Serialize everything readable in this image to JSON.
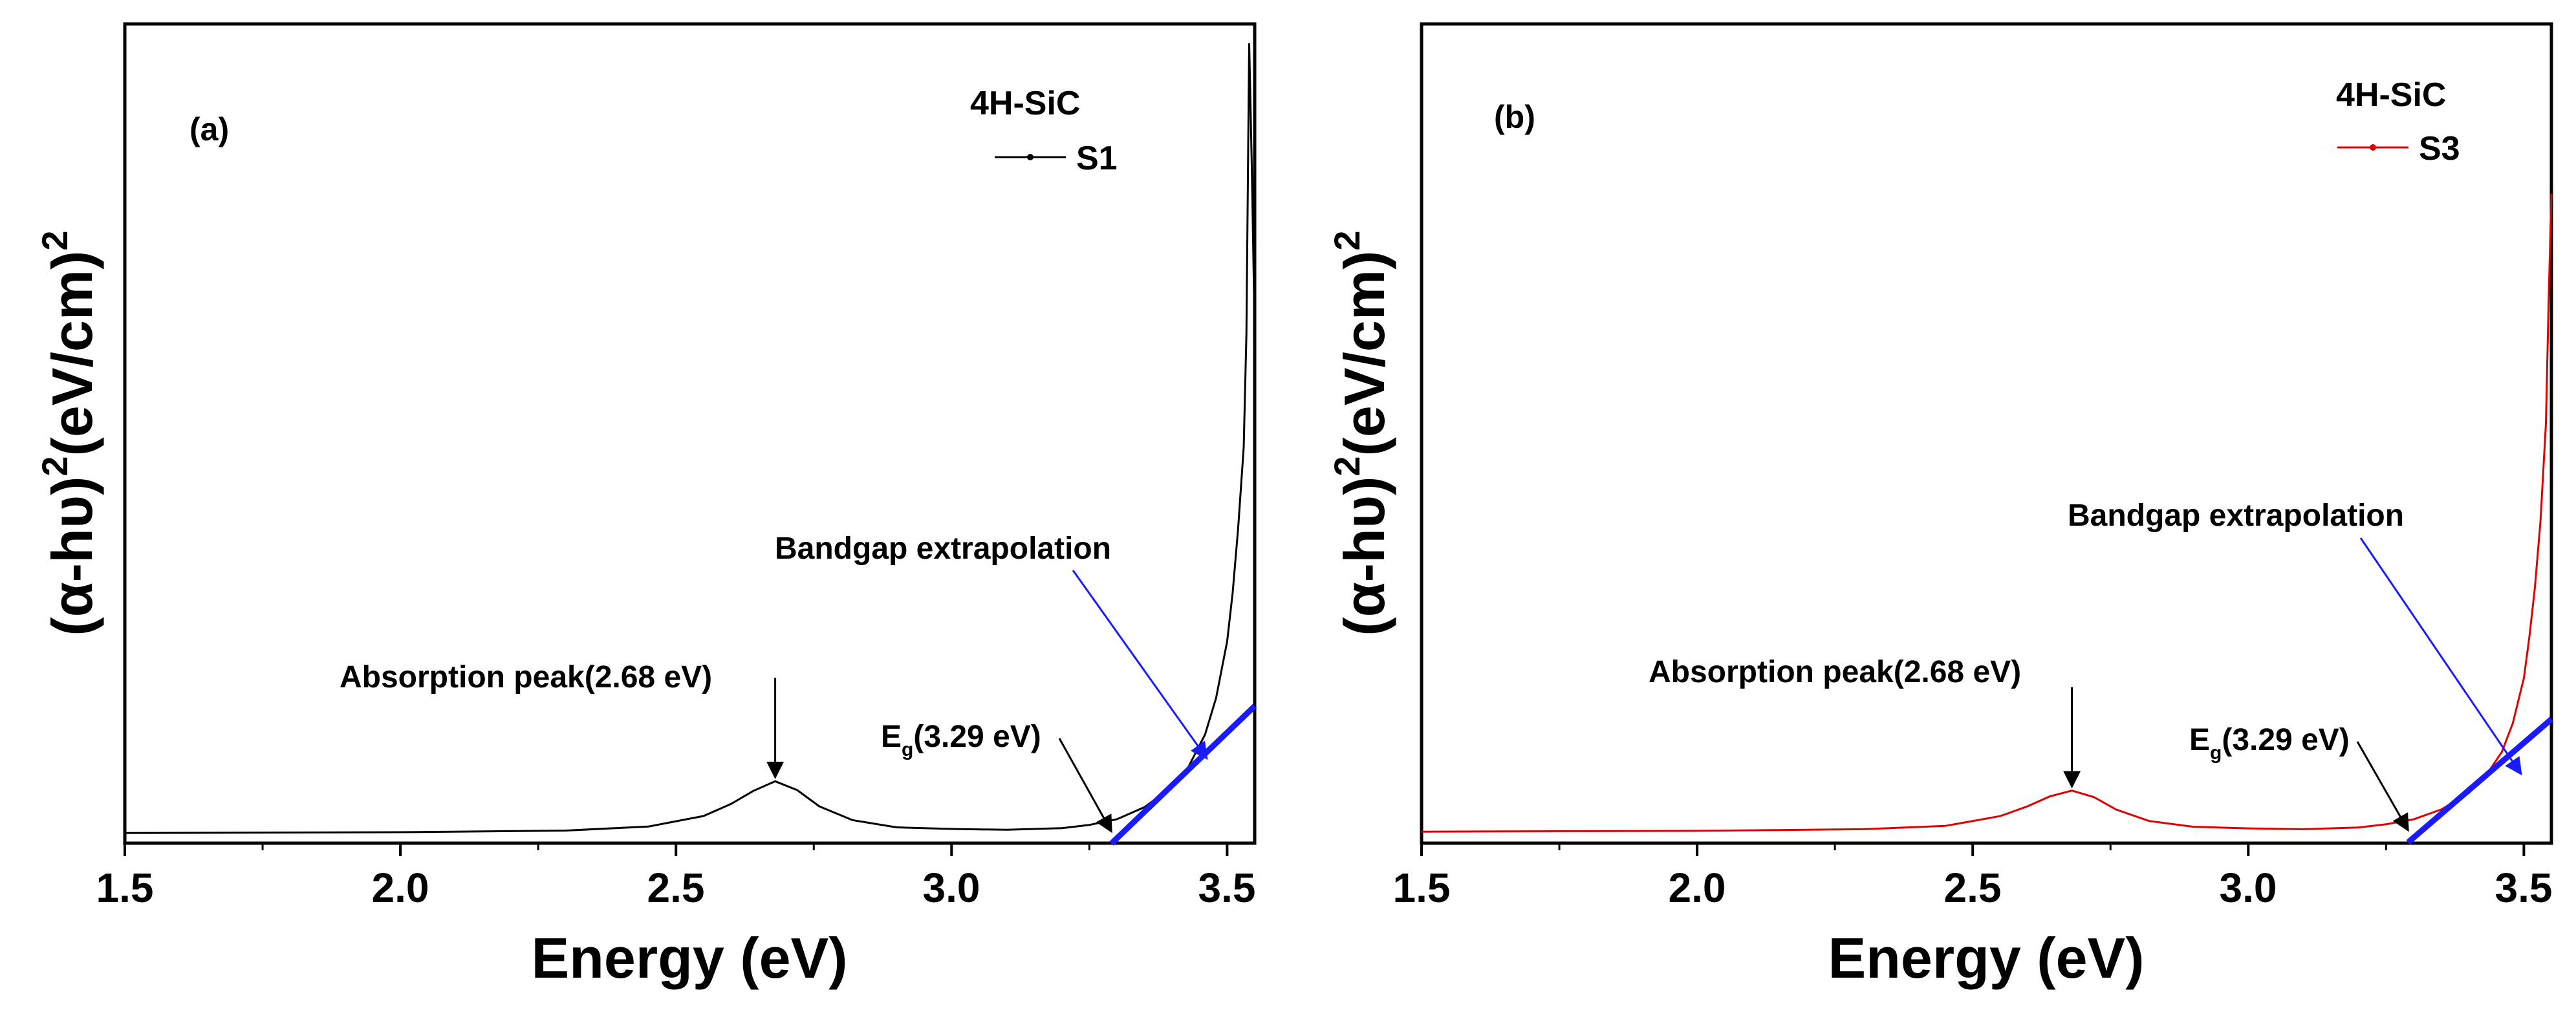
{
  "chart_data": [
    {
      "type": "line",
      "panel_label": "(a)",
      "xlabel": "Energy (eV)",
      "ylabel_parts": {
        "base": "(α-hυ)",
        "exp": "2",
        "unit": "(eV/cm)",
        "exp2": "2"
      },
      "xlim": [
        1.5,
        3.55
      ],
      "ylim": [
        0,
        100
      ],
      "xticks": [
        "1.5",
        "2.0",
        "2.5",
        "3.0",
        "3.5"
      ],
      "legend": {
        "title": "4H-SiC",
        "label": "S1",
        "position": "top-right"
      },
      "series": [
        {
          "name": "S1",
          "color": "#000000",
          "x": [
            1.5,
            2.0,
            2.3,
            2.45,
            2.55,
            2.6,
            2.64,
            2.68,
            2.72,
            2.76,
            2.82,
            2.9,
            3.0,
            3.1,
            3.2,
            3.25,
            3.3,
            3.35,
            3.4,
            3.43,
            3.46,
            3.48,
            3.5,
            3.51,
            3.52,
            3.53,
            3.535,
            3.54,
            3.545,
            3.55
          ],
          "y": [
            0.3,
            0.4,
            0.6,
            1.1,
            2.4,
            3.9,
            5.5,
            6.7,
            5.6,
            3.6,
            1.9,
            1.0,
            0.8,
            0.7,
            0.9,
            1.3,
            2.0,
            3.5,
            6.0,
            8.5,
            12.5,
            17,
            24,
            30,
            38,
            48,
            62,
            98,
            82,
            62
          ]
        },
        {
          "name": "Bandgap extrapolation line",
          "color": "#1a1aff",
          "x": [
            3.29,
            3.55
          ],
          "y": [
            -1,
            16
          ]
        }
      ],
      "annotations": {
        "peak": {
          "text": "Absorption peak",
          "value": "(2.68 eV)",
          "x": 2.68,
          "y": 6.7
        },
        "eg": {
          "symbol": "E",
          "sub": "g",
          "value": "(3.29 eV)",
          "x": 3.29,
          "y": 0
        },
        "bandgap": {
          "text": "Bandgap extrapolation"
        }
      }
    },
    {
      "type": "line",
      "panel_label": "(b)",
      "xlabel": "Energy (eV)",
      "ylabel_parts": {
        "base": "(α-hυ)",
        "exp": "2",
        "unit": "(eV/cm)",
        "exp2": "2"
      },
      "xlim": [
        1.5,
        3.55
      ],
      "ylim": [
        0,
        100
      ],
      "xticks": [
        "1.5",
        "2.0",
        "2.5",
        "3.0",
        "3.5"
      ],
      "legend": {
        "title": "4H-SiC",
        "label": "S3",
        "position": "top-right"
      },
      "series": [
        {
          "name": "S3",
          "color": "#e00000",
          "x": [
            1.5,
            2.0,
            2.3,
            2.45,
            2.55,
            2.6,
            2.64,
            2.68,
            2.72,
            2.76,
            2.82,
            2.9,
            3.0,
            3.1,
            3.2,
            3.25,
            3.3,
            3.35,
            3.4,
            3.43,
            3.46,
            3.48,
            3.5,
            3.51,
            3.52,
            3.53,
            3.54,
            3.545,
            3.55
          ],
          "y": [
            0.3,
            0.4,
            0.6,
            1.0,
            2.2,
            3.4,
            4.6,
            5.3,
            4.5,
            3.0,
            1.6,
            0.9,
            0.7,
            0.6,
            0.8,
            1.2,
            1.8,
            3.0,
            5.0,
            7.0,
            10.0,
            13.5,
            19,
            24,
            30,
            38,
            50,
            65,
            78
          ]
        },
        {
          "name": "Bandgap extrapolation line",
          "color": "#1a1aff",
          "x": [
            3.29,
            3.55
          ],
          "y": [
            -1,
            14
          ]
        }
      ],
      "annotations": {
        "peak": {
          "text": "Absorption peak",
          "value": "(2.68 eV)",
          "x": 2.68,
          "y": 5.3
        },
        "eg": {
          "symbol": "E",
          "sub": "g",
          "value": "(3.29 eV)",
          "x": 3.29,
          "y": 0
        },
        "bandgap": {
          "text": "Bandgap extrapolation"
        }
      }
    }
  ]
}
